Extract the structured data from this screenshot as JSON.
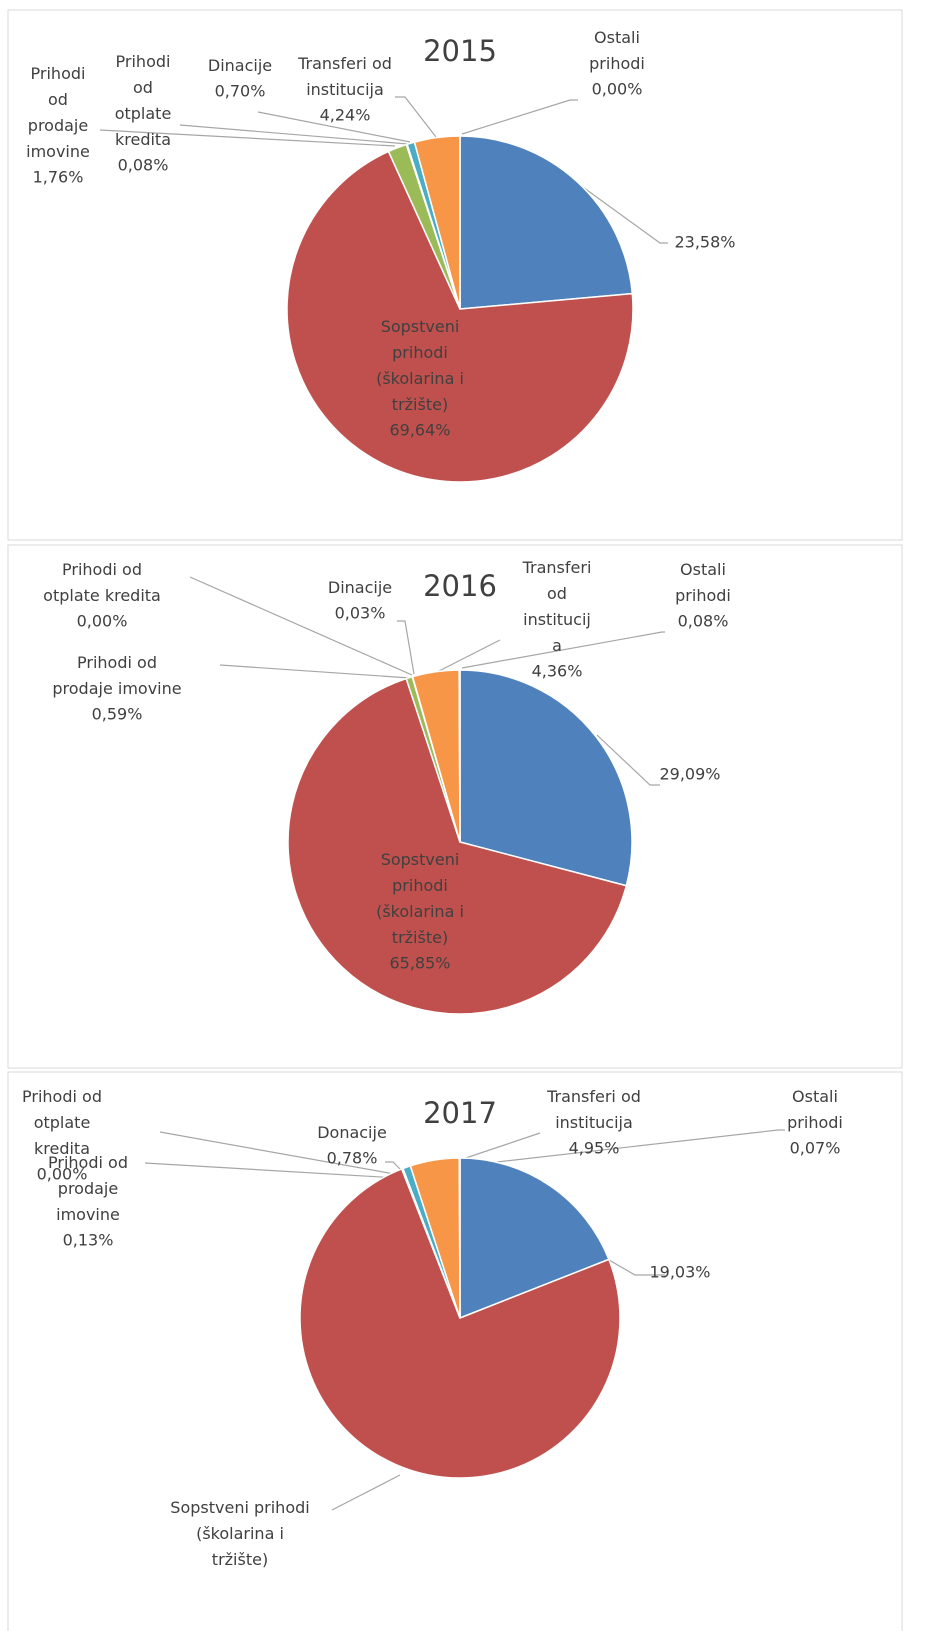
{
  "chart_data": [
    {
      "type": "pie",
      "title": "2015",
      "categories": [
        null,
        "Sopstveni prihodi (školarina i tržište)",
        "Prihodi od prodaje imovine",
        "Prihodi od otplate kredita",
        "Dinacije",
        "Transferi od institucija",
        "Ostali prihodi"
      ],
      "values": [
        23.58,
        69.64,
        1.76,
        0.08,
        0.7,
        4.24,
        0.0
      ],
      "value_labels": [
        "23,58%",
        "69,64%",
        "1,76%",
        "0,08%",
        "0,70%",
        "4,24%",
        "0,00%"
      ],
      "colors": [
        "#4f81bd",
        "#c0504d",
        "#9bbb59",
        "#8064a2",
        "#4bacc6",
        "#f79646",
        "#2c4d75"
      ]
    },
    {
      "type": "pie",
      "title": "2016",
      "categories": [
        null,
        "Sopstveni prihodi (školarina i tržište)",
        "Prihodi od prodaje imovine",
        "Prihodi od otplate kredita",
        "Dinacije",
        "Transferi od institucija",
        "Ostali prihodi"
      ],
      "values": [
        29.09,
        65.85,
        0.59,
        0.0,
        0.03,
        4.36,
        0.08
      ],
      "value_labels": [
        "29,09%",
        "65,85%",
        "0,59%",
        "0,00%",
        "0,03%",
        "4,36%",
        "0,08%"
      ],
      "colors": [
        "#4f81bd",
        "#c0504d",
        "#9bbb59",
        "#8064a2",
        "#4bacc6",
        "#f79646",
        "#2c4d75"
      ]
    },
    {
      "type": "pie",
      "title": "2017",
      "categories": [
        null,
        "Sopstveni prihodi (školarina i tržište)",
        "Prihodi od prodaje imovine",
        "Prihodi od otplate kredita",
        "Donacije",
        "Transferi od institucija",
        "Ostali prihodi"
      ],
      "values": [
        19.03,
        75.04,
        0.13,
        0.0,
        0.78,
        4.95,
        0.07
      ],
      "value_labels": [
        "19,03%",
        null,
        "0,13%",
        "0,00%",
        "0,78%",
        "4,95%",
        "0,07%"
      ],
      "colors": [
        "#4f81bd",
        "#c0504d",
        "#9bbb59",
        "#8064a2",
        "#4bacc6",
        "#f79646",
        "#2c4d75"
      ]
    }
  ]
}
